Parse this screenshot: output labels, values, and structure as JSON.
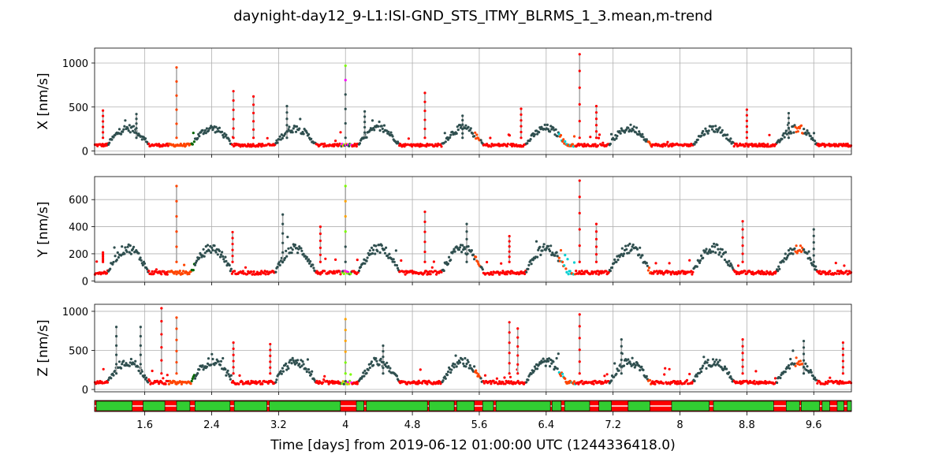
{
  "chart_data": {
    "type": "scatter",
    "title": "daynight-day12_9-L1:ISI-GND_STS_ITMY_BLRMS_1_3.mean,m-trend",
    "xlabel": "Time [days] from 2019-06-12 01:00:00 UTC (1244336418.0)",
    "xlim": [
      1.0,
      10.05
    ],
    "xticks": [
      1.6,
      2.4,
      3.2,
      4,
      4.8,
      5.6,
      6.4,
      7.2,
      8,
      8.8,
      9.6
    ],
    "xtick_labels": [
      "1.6",
      "2.4",
      "3.2",
      "4",
      "4.8",
      "5.6",
      "6.4",
      "7.2",
      "8",
      "8.8",
      "9.6"
    ],
    "grid": true,
    "colors": {
      "quiet": "#ff0000",
      "active": "#2f4f4f",
      "transition": "#ff4500",
      "lock": "#006400",
      "state_a": "#7cfc00",
      "state_b": "#ff00ff",
      "state_c": "#00ced1",
      "state_d": "#ffa500",
      "segment_on": "#32cd32",
      "segment_off": "#ff0000",
      "connector": "#a9a9a9"
    },
    "panels": [
      {
        "ylabel": "X [nm/s]",
        "ylim": [
          -40,
          1170
        ],
        "yticks": [
          0,
          500,
          1000
        ],
        "ytick_labels": [
          "0",
          "500",
          "1000"
        ],
        "base": 60,
        "amp": 180,
        "noise": 55,
        "spikes": [
          {
            "x": 1.1,
            "y": 460
          },
          {
            "x": 1.5,
            "y": 420
          },
          {
            "x": 1.98,
            "y": 950
          },
          {
            "x": 2.66,
            "y": 680
          },
          {
            "x": 2.9,
            "y": 620
          },
          {
            "x": 3.3,
            "y": 510
          },
          {
            "x": 4.0,
            "y": 970
          },
          {
            "x": 4.23,
            "y": 450
          },
          {
            "x": 4.95,
            "y": 660
          },
          {
            "x": 5.4,
            "y": 400
          },
          {
            "x": 6.1,
            "y": 480
          },
          {
            "x": 6.8,
            "y": 1100
          },
          {
            "x": 7.0,
            "y": 510
          },
          {
            "x": 8.8,
            "y": 470
          },
          {
            "x": 9.3,
            "y": 430
          }
        ]
      },
      {
        "ylabel": "Y [nm/s]",
        "ylim": [
          -10,
          770
        ],
        "yticks": [
          0,
          200,
          400,
          600
        ],
        "ytick_labels": [
          "0",
          "200",
          "400",
          "600"
        ],
        "base": 55,
        "amp": 170,
        "noise": 45,
        "spikes": [
          {
            "x": 1.1,
            "y": 210
          },
          {
            "x": 1.98,
            "y": 700
          },
          {
            "x": 2.65,
            "y": 360
          },
          {
            "x": 3.25,
            "y": 490
          },
          {
            "x": 3.7,
            "y": 400
          },
          {
            "x": 4.0,
            "y": 700
          },
          {
            "x": 4.95,
            "y": 510
          },
          {
            "x": 5.45,
            "y": 420
          },
          {
            "x": 5.96,
            "y": 330
          },
          {
            "x": 6.8,
            "y": 740
          },
          {
            "x": 7.0,
            "y": 420
          },
          {
            "x": 8.75,
            "y": 440
          },
          {
            "x": 9.6,
            "y": 380
          }
        ]
      },
      {
        "ylabel": "Z [nm/s]",
        "ylim": [
          -30,
          1090
        ],
        "yticks": [
          0,
          500,
          1000
        ],
        "ytick_labels": [
          "0",
          "500",
          "1000"
        ],
        "base": 80,
        "amp": 250,
        "noise": 70,
        "spikes": [
          {
            "x": 1.26,
            "y": 800
          },
          {
            "x": 1.55,
            "y": 800
          },
          {
            "x": 1.8,
            "y": 1040
          },
          {
            "x": 1.98,
            "y": 920
          },
          {
            "x": 2.66,
            "y": 600
          },
          {
            "x": 3.1,
            "y": 580
          },
          {
            "x": 4.0,
            "y": 900
          },
          {
            "x": 4.45,
            "y": 560
          },
          {
            "x": 5.96,
            "y": 860
          },
          {
            "x": 6.06,
            "y": 780
          },
          {
            "x": 6.8,
            "y": 960
          },
          {
            "x": 7.3,
            "y": 640
          },
          {
            "x": 8.75,
            "y": 640
          },
          {
            "x": 9.48,
            "y": 620
          },
          {
            "x": 9.95,
            "y": 600
          }
        ]
      }
    ],
    "segments_on": [
      [
        1.02,
        1.45
      ],
      [
        1.58,
        1.84
      ],
      [
        1.98,
        2.14
      ],
      [
        2.2,
        2.62
      ],
      [
        2.67,
        3.06
      ],
      [
        3.09,
        3.94
      ],
      [
        4.13,
        4.22
      ],
      [
        4.25,
        4.98
      ],
      [
        5.0,
        5.3
      ],
      [
        5.33,
        5.54
      ],
      [
        5.64,
        5.77
      ],
      [
        5.8,
        6.45
      ],
      [
        6.47,
        6.58
      ],
      [
        6.62,
        6.92
      ],
      [
        7.03,
        7.18
      ],
      [
        7.38,
        7.64
      ],
      [
        7.9,
        8.35
      ],
      [
        8.4,
        9.12
      ],
      [
        9.27,
        9.43
      ],
      [
        9.45,
        9.67
      ],
      [
        9.7,
        9.79
      ],
      [
        9.88,
        9.96
      ],
      [
        10.0,
        10.05
      ]
    ]
  }
}
